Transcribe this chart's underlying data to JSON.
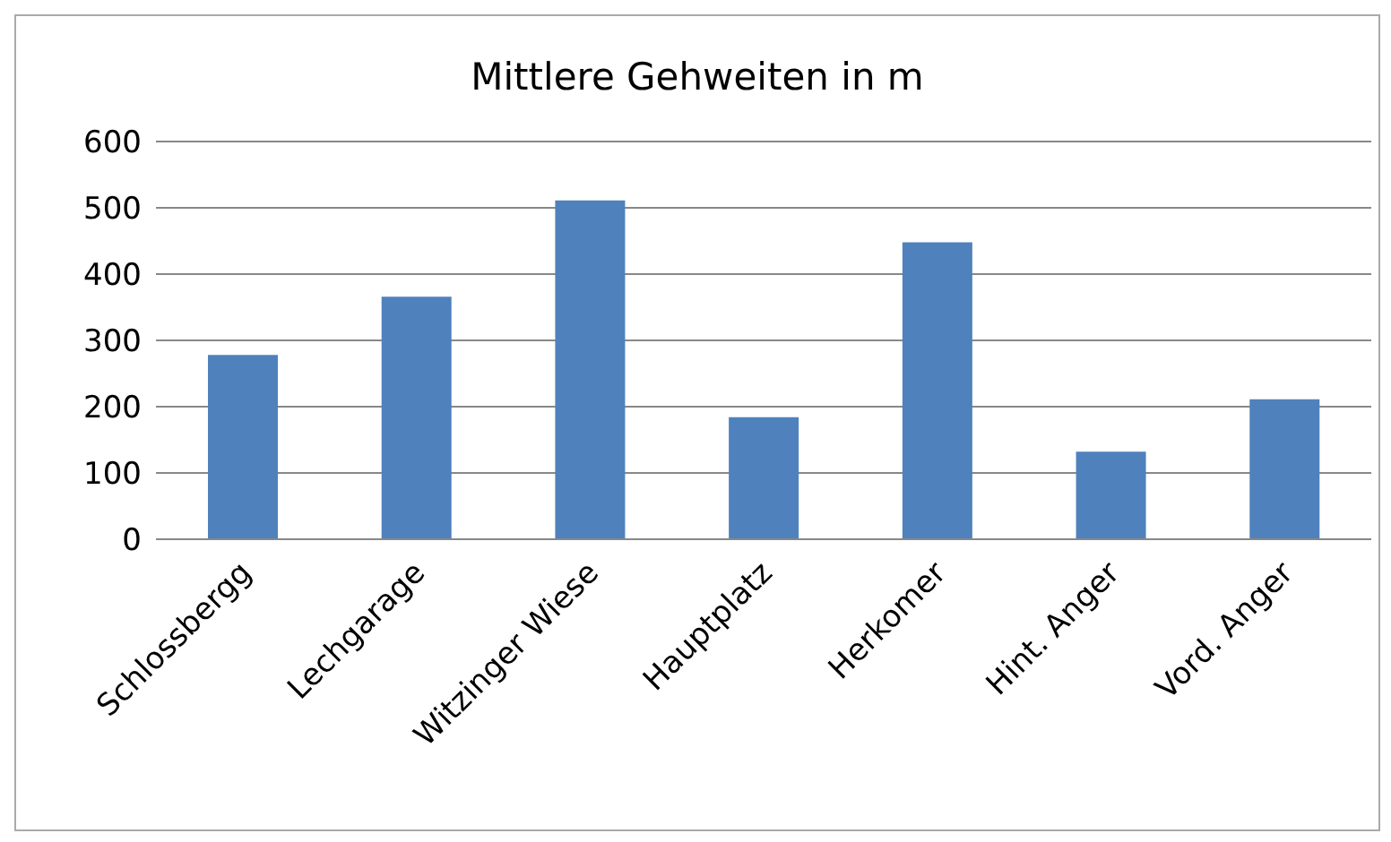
{
  "chart_data": {
    "type": "bar",
    "title": "Mittlere Gehweiten in m",
    "categories": [
      "Schlossbergg",
      "Lechgarage",
      "Witzinger Wiese",
      "Hauptplatz",
      "Herkomer",
      "Hint. Anger",
      "Vord. Anger"
    ],
    "values": [
      278,
      366,
      511,
      184,
      448,
      132,
      211
    ],
    "color": "#4f81bd",
    "ylim": [
      0,
      600
    ],
    "yticks": [
      0,
      100,
      200,
      300,
      400,
      500,
      600
    ],
    "grid": "y"
  }
}
